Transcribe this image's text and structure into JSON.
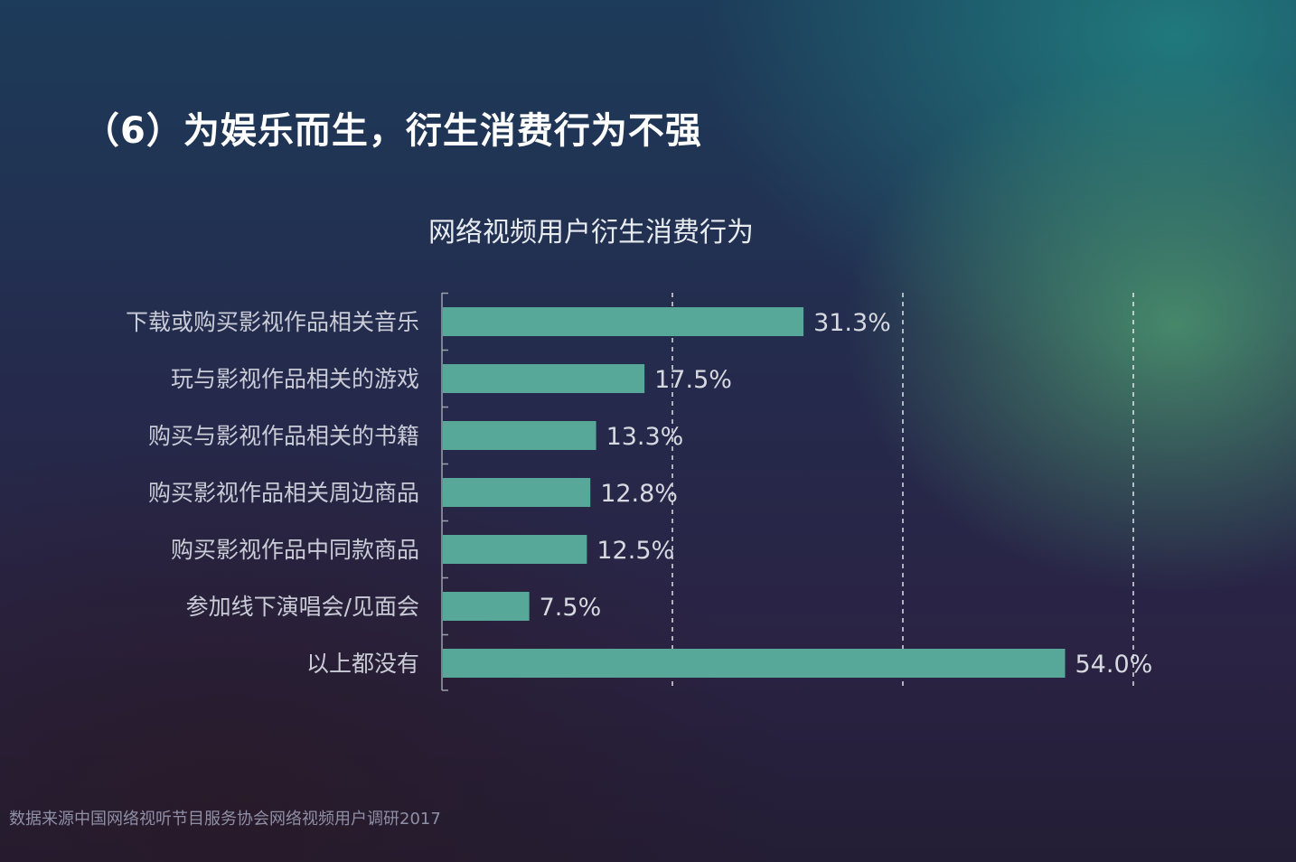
{
  "page": {
    "title": "（6）为娱乐而生，衍生消费行为不强",
    "footnote": "数据来源中国网络视听节目服务协会网络视频用户调研2017"
  },
  "colors": {
    "bar": "#57a898",
    "grid": "#ffffff",
    "axis": "#9aa0ad"
  },
  "chart_data": {
    "type": "bar",
    "orientation": "horizontal",
    "title": "网络视频用户衍生消费行为",
    "categories": [
      "下载或购买影视作品相关音乐",
      "玩与影视作品相关的游戏",
      "购买与影视作品相关的书籍",
      "购买影视作品相关周边商品",
      "购买影视作品中同款商品",
      "参加线下演唱会/见面会",
      "以上都没有"
    ],
    "values": [
      31.3,
      17.5,
      13.3,
      12.8,
      12.5,
      7.5,
      54.0
    ],
    "value_labels": [
      "31.3%",
      "17.5%",
      "13.3%",
      "12.8%",
      "12.5%",
      "7.5%",
      "54.0%"
    ],
    "xlim": [
      0,
      60
    ],
    "gridlines": [
      20,
      40,
      60
    ],
    "grid": true,
    "legend": "none"
  }
}
